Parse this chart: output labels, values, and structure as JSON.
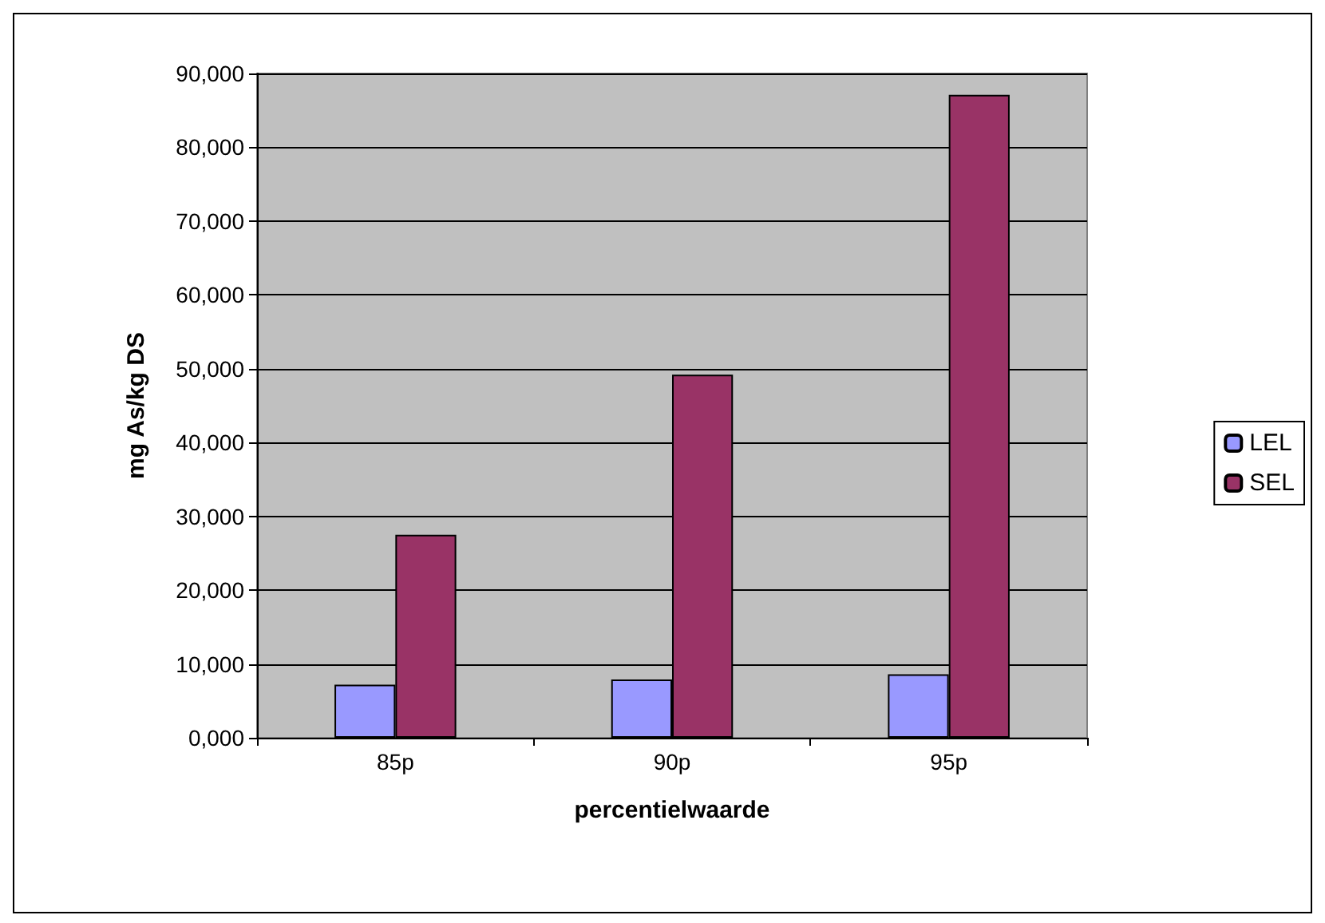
{
  "chart_data": {
    "type": "bar",
    "xlabel": "percentielwaarde",
    "ylabel": "mg As/kg DS",
    "categories": [
      "85p",
      "90p",
      "95p"
    ],
    "series": [
      {
        "name": "LEL",
        "color": "#9999ff",
        "values": [
          7200,
          7900,
          8600
        ]
      },
      {
        "name": "SEL",
        "color": "#993366",
        "values": [
          27500,
          49200,
          87100
        ]
      }
    ],
    "ylim": [
      0,
      90000
    ],
    "yticks": [
      {
        "value": 0,
        "label": "0,000"
      },
      {
        "value": 10000,
        "label": "10,000"
      },
      {
        "value": 20000,
        "label": "20,000"
      },
      {
        "value": 30000,
        "label": "30,000"
      },
      {
        "value": 40000,
        "label": "40,000"
      },
      {
        "value": 50000,
        "label": "50,000"
      },
      {
        "value": 60000,
        "label": "60,000"
      },
      {
        "value": 70000,
        "label": "70,000"
      },
      {
        "value": 80000,
        "label": "80,000"
      },
      {
        "value": 90000,
        "label": "90,000"
      }
    ],
    "grid": "y",
    "legend": "right"
  }
}
